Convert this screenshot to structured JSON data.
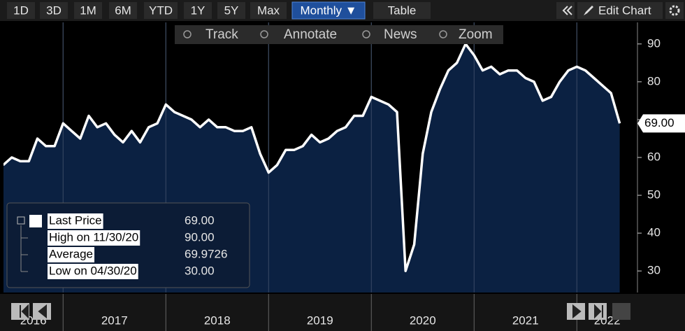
{
  "toolbar": {
    "ranges": [
      "1D",
      "3D",
      "1M",
      "6M",
      "YTD",
      "1Y",
      "5Y",
      "Max"
    ],
    "frequency": "Monthly ▼",
    "table": "Table",
    "edit": "Edit Chart"
  },
  "tools": [
    "Track",
    "Annotate",
    "News",
    "Zoom"
  ],
  "legend": [
    {
      "label": "Last Price",
      "value": "69.00"
    },
    {
      "label": "High on 11/30/20",
      "value": "90.00"
    },
    {
      "label": "Average",
      "value": "69.9726"
    },
    {
      "label": "Low on 04/30/20",
      "value": "30.00"
    }
  ],
  "chart_data": {
    "type": "area",
    "color": "#ffffff",
    "fill": "#0b2142",
    "x": [
      2016.417,
      2016.5,
      2016.583,
      2016.667,
      2016.75,
      2016.833,
      2016.917,
      2017.0,
      2017.083,
      2017.167,
      2017.25,
      2017.333,
      2017.417,
      2017.5,
      2017.583,
      2017.667,
      2017.75,
      2017.833,
      2017.917,
      2018.0,
      2018.083,
      2018.167,
      2018.25,
      2018.333,
      2018.417,
      2018.5,
      2018.583,
      2018.667,
      2018.75,
      2018.833,
      2018.917,
      2019.0,
      2019.083,
      2019.167,
      2019.25,
      2019.333,
      2019.417,
      2019.5,
      2019.583,
      2019.667,
      2019.75,
      2019.833,
      2019.917,
      2020.0,
      2020.083,
      2020.167,
      2020.25,
      2020.333,
      2020.417,
      2020.5,
      2020.583,
      2020.667,
      2020.75,
      2020.833,
      2020.917,
      2021.0,
      2021.083,
      2021.167,
      2021.25,
      2021.333,
      2021.417,
      2021.5,
      2021.583,
      2021.667,
      2021.75,
      2021.833,
      2021.917,
      2022.0,
      2022.083,
      2022.167,
      2022.25,
      2022.333,
      2022.417
    ],
    "values": [
      58,
      60,
      59,
      59,
      65,
      63,
      63,
      69,
      67,
      65,
      71,
      68,
      69,
      66,
      64,
      67,
      64,
      68,
      69,
      74,
      72,
      71,
      70,
      68,
      70,
      68,
      68,
      67,
      67,
      68,
      61,
      56,
      58,
      62,
      62,
      63,
      66,
      64,
      65,
      67,
      68,
      71,
      71,
      76,
      75,
      74,
      72,
      30,
      37,
      61,
      72,
      78,
      83,
      85,
      90,
      87,
      83,
      84,
      82,
      83,
      83,
      81,
      80,
      75,
      76,
      80,
      83,
      84,
      83,
      81,
      79,
      77,
      69
    ],
    "last_value_label": "69.00",
    "xlim": [
      2016.42,
      2022.59
    ],
    "xticks": [
      {
        "value": 2016,
        "label": "2016"
      },
      {
        "value": 2017,
        "label": "2017"
      },
      {
        "value": 2018,
        "label": "2018"
      },
      {
        "value": 2019,
        "label": "2019"
      },
      {
        "value": 2020,
        "label": "2020"
      },
      {
        "value": 2021,
        "label": "2021"
      },
      {
        "value": 2022,
        "label": "2022"
      }
    ],
    "ylim": [
      24.3,
      95.7
    ],
    "yticks": [
      30,
      40,
      50,
      60,
      70,
      80,
      90
    ]
  }
}
